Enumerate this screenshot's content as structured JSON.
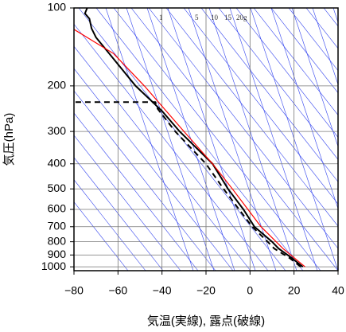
{
  "chart_data": {
    "type": "line",
    "xlabel": "気温(実線), 露点(破線)",
    "ylabel": "気圧(hPa)",
    "xlim": [
      -80,
      40
    ],
    "xticks": [
      {
        "value": -80,
        "label": "−80"
      },
      {
        "value": -60,
        "label": "−60"
      },
      {
        "value": -40,
        "label": "−40"
      },
      {
        "value": -20,
        "label": "−20"
      },
      0,
      20,
      40
    ],
    "ylim": [
      1035,
      100
    ],
    "ylog": true,
    "yticks": [
      100,
      200,
      300,
      400,
      500,
      600,
      700,
      800,
      900,
      1000
    ],
    "grid": true,
    "mixing_ratio_labels": [
      "1",
      "5",
      "10",
      "15",
      "20g"
    ],
    "series": [
      {
        "color": "#000000",
        "dash": false,
        "pressure": [
          1000,
          925,
          850,
          800,
          700,
          600,
          500,
          400,
          300,
          250,
          200,
          150,
          130,
          120,
          110,
          105,
          100
        ],
        "temperature": [
          24,
          19,
          13,
          10,
          2,
          -3,
          -10,
          -17,
          -32,
          -40,
          -52,
          -64,
          -70,
          -72,
          -73,
          -75,
          -74
        ]
      },
      {
        "color": "#000000",
        "dash": true,
        "pressure": [
          1000,
          925,
          850,
          800,
          700,
          600,
          500,
          400,
          300,
          245,
          231,
          231
        ],
        "temperature": [
          23,
          18,
          11,
          8,
          1,
          -5,
          -12,
          -20,
          -34,
          -42,
          -43,
          -80
        ]
      },
      {
        "color": "#ff0000",
        "dash": false,
        "pressure": [
          1000,
          850,
          700,
          500,
          400,
          300,
          200,
          150,
          121
        ],
        "temperature": [
          25,
          15,
          5,
          -8,
          -17,
          -30,
          -48,
          -62,
          -80
        ]
      }
    ]
  }
}
